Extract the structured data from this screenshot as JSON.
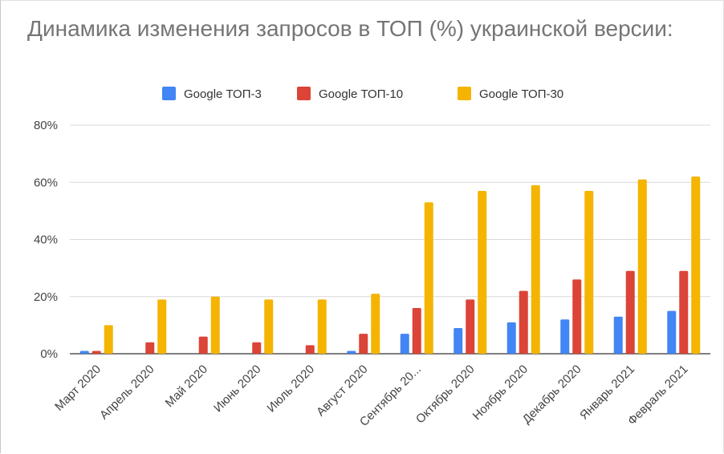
{
  "chart_data": {
    "type": "bar",
    "title": "Динамика изменения запросов в ТОП (%) украинской версии:",
    "categories": [
      "Март 2020",
      "Апрель 2020",
      "Май 2020",
      "Июнь 2020",
      "Июль 2020",
      "Август 2020",
      "Сентябрь 20...",
      "Октябрь 2020",
      "Ноябрь 2020",
      "Декабрь 2020",
      "Январь 2021",
      "Февраль 2021"
    ],
    "series": [
      {
        "name": "Google ТОП-3",
        "color": "#4285f4",
        "values": [
          1,
          0,
          0,
          0,
          0,
          1,
          7,
          9,
          11,
          12,
          13,
          15
        ]
      },
      {
        "name": "Google ТОП-10",
        "color": "#db4437",
        "values": [
          1,
          4,
          6,
          4,
          3,
          7,
          16,
          19,
          22,
          26,
          29,
          29
        ]
      },
      {
        "name": "Google ТОП-30",
        "color": "#f4b400",
        "values": [
          10,
          19,
          20,
          19,
          19,
          21,
          53,
          57,
          59,
          57,
          61,
          62
        ]
      }
    ],
    "yticks": [
      "0%",
      "20%",
      "40%",
      "60%",
      "80%"
    ],
    "ylim": [
      0,
      80
    ],
    "legend_position": "top",
    "grid": true
  }
}
